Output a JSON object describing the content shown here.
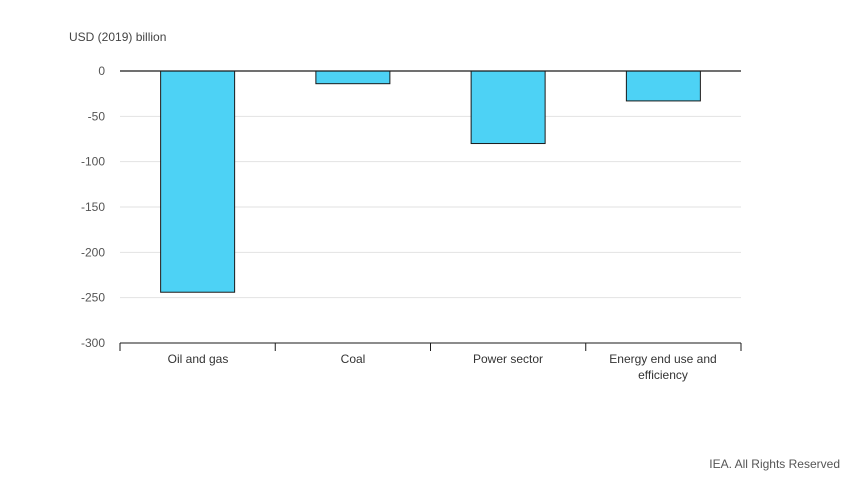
{
  "chart_data": {
    "type": "bar",
    "ylabel": "USD (2019) billion",
    "xlabel": "",
    "ylim": [
      -300,
      0
    ],
    "yticks": [
      0,
      -50,
      -100,
      -150,
      -200,
      -250,
      -300
    ],
    "categories": [
      "Oil and gas",
      "Coal",
      "Power sector",
      "Energy end use and efficiency"
    ],
    "series": [
      {
        "values": [
          -244,
          -14,
          -80,
          -33
        ]
      }
    ],
    "grid": true,
    "legend": "none",
    "bar_color": "#4dd2f5"
  },
  "credit": "IEA. All Rights Reserved"
}
